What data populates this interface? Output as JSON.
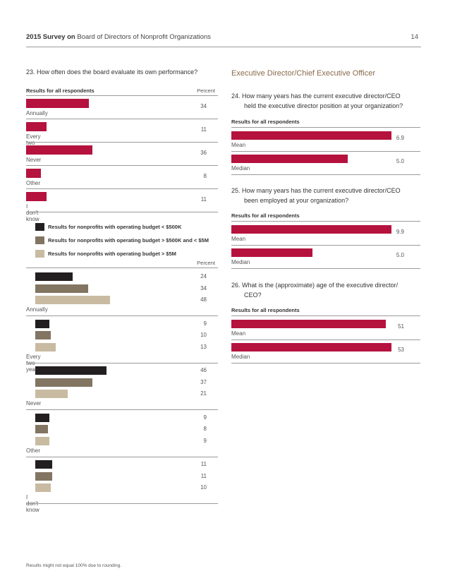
{
  "header": {
    "title_bold": "2015 Survey on",
    "title_rest": "Board of Directors of Nonprofit Organizations",
    "page_number": "14"
  },
  "colors": {
    "crimson": "#b5123e",
    "black": "#231f20",
    "gray": "#827562",
    "tan": "#c8bba2",
    "section": "#8a6a4a"
  },
  "q23": {
    "question": "23.  How often does the board evaluate its own performance?",
    "sub_label": "Results for all respondents",
    "percent_label": "Percent",
    "percent_label2": "Percent",
    "legend": [
      "Results for nonprofits with operating budget < $500K",
      "Results for nonprofits with operating budget > $500K and < $5M",
      "Results for nonprofits with operating budget > $5M"
    ]
  },
  "section_title": "Executive Director/Chief Executive Officer",
  "q24": {
    "question_l1": "24.  How many years has the current executive director/CEO",
    "question_l2": "held the executive director position at your organization?",
    "sub_label": "Results for all respondents"
  },
  "q25": {
    "question_l1": "25.  How many years has the current executive director/CEO",
    "question_l2": "been employed at your organization?",
    "sub_label": "Results for all respondents"
  },
  "q26": {
    "question_l1": "26.  What is the (approximate) age of the executive director/",
    "question_l2": "CEO?",
    "sub_label": "Results for all respondents"
  },
  "footnote": "Results might not equal 100% due to rounding.",
  "chart_data": [
    {
      "type": "bar",
      "orientation": "horizontal",
      "title": "23. How often does the board evaluate its own performance? — Results for all respondents",
      "categories": [
        "Annually",
        "Every two years",
        "Never",
        "Other",
        "I don't know"
      ],
      "values": [
        34,
        11,
        36,
        8,
        11
      ],
      "value_labels": [
        "34",
        "11",
        "36",
        "8",
        "11"
      ],
      "unit": "Percent",
      "xlim": [
        0,
        100
      ]
    },
    {
      "type": "bar",
      "orientation": "horizontal",
      "title": "23. Results by operating budget",
      "categories": [
        "Annually",
        "Every two years",
        "Never",
        "Other",
        "I don't know"
      ],
      "series": [
        {
          "name": "Results for nonprofits with operating budget < $500K",
          "values": [
            24,
            9,
            46,
            9,
            11
          ],
          "value_labels": [
            "24",
            "9",
            "46",
            "9",
            "11"
          ]
        },
        {
          "name": "Results for nonprofits with operating budget > $500K and < $5M",
          "values": [
            34,
            10,
            37,
            8,
            11
          ],
          "value_labels": [
            "34",
            "10",
            "37",
            "8",
            "11"
          ]
        },
        {
          "name": "Results for nonprofits with operating budget > $5M",
          "values": [
            48,
            13,
            21,
            9,
            10
          ],
          "value_labels": [
            "48",
            "13",
            "21",
            "9",
            "10"
          ]
        }
      ],
      "unit": "Percent",
      "xlim": [
        0,
        100
      ]
    },
    {
      "type": "bar",
      "orientation": "horizontal",
      "title": "24. Years as executive director",
      "categories": [
        "Mean",
        "Median"
      ],
      "values": [
        6.9,
        5.0
      ],
      "value_labels": [
        "6.9",
        "5.0"
      ],
      "xlim": [
        0,
        7.1
      ]
    },
    {
      "type": "bar",
      "orientation": "horizontal",
      "title": "25. Years employed at organization",
      "categories": [
        "Mean",
        "Median"
      ],
      "values": [
        9.9,
        5.0
      ],
      "value_labels": [
        "9.9",
        "5.0"
      ],
      "xlim": [
        0,
        10.2
      ]
    },
    {
      "type": "bar",
      "orientation": "horizontal",
      "title": "26. Age of the executive director/CEO",
      "categories": [
        "Mean",
        "Median"
      ],
      "values": [
        51,
        53
      ],
      "value_labels": [
        "51",
        "53"
      ],
      "xlim": [
        0,
        54.6
      ]
    }
  ]
}
